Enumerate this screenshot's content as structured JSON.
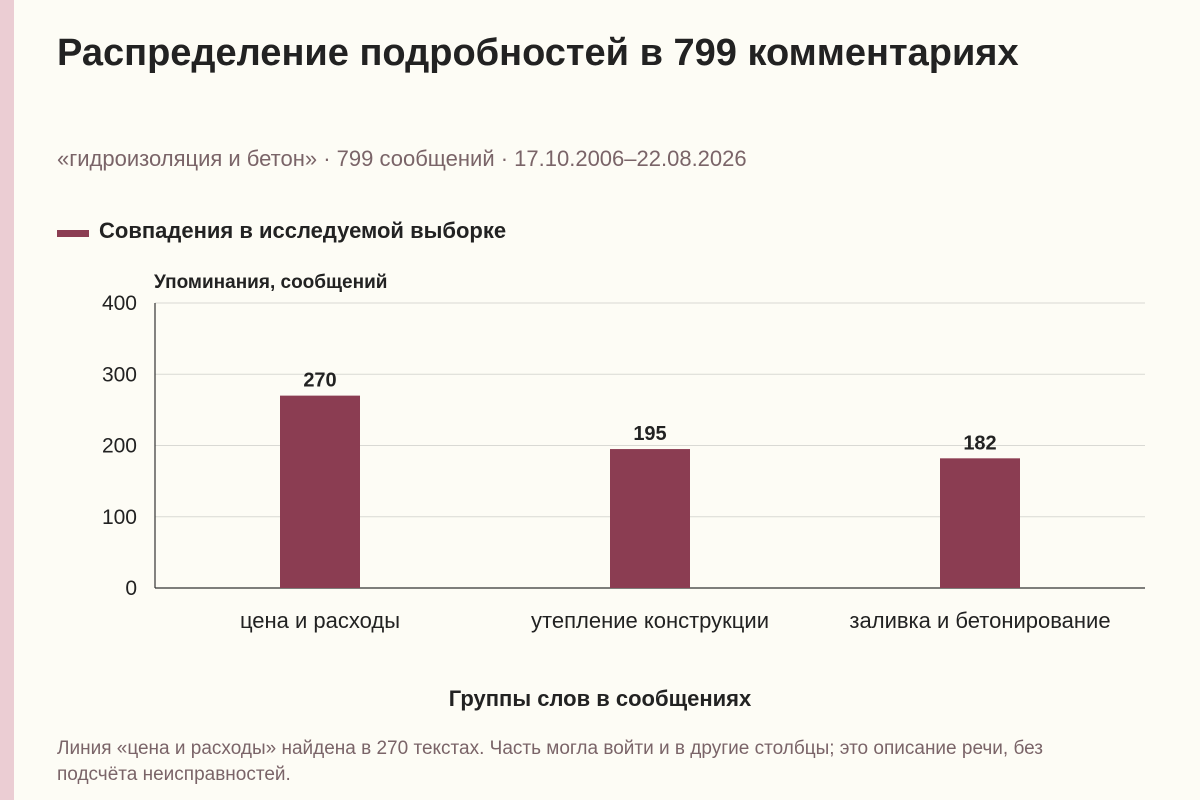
{
  "header": {
    "title": "Распределение подробностей в 799 комментариях",
    "subtitle": "«гидроизоляция и бетон» · 799 сообщений · 17.10.2006–22.08.2026"
  },
  "footer": {
    "note": "Линия «цена и расходы» найдена в 270 текстах. Часть могла войти и в другие столбцы; это описание речи, без подсчёта неисправностей."
  },
  "colors": {
    "bar": "#8b3d52",
    "grid": "#d9d9d4",
    "axis": "#333333"
  },
  "chart_data": {
    "type": "bar",
    "title": "Распределение подробностей в 799 комментариях",
    "xlabel": "Группы слов в сообщениях",
    "ylabel": "Упоминания, сообщений",
    "categories": [
      "цена и расходы",
      "утепление конструкции",
      "заливка и бетонирование"
    ],
    "series": [
      {
        "name": "Совпадения в исследуемой выборке",
        "values": [
          270,
          195,
          182
        ]
      }
    ],
    "ylim": [
      0,
      400
    ],
    "yticks": [
      0,
      100,
      200,
      300,
      400
    ],
    "data_labels": true,
    "grid": true,
    "legend": "top-left"
  }
}
